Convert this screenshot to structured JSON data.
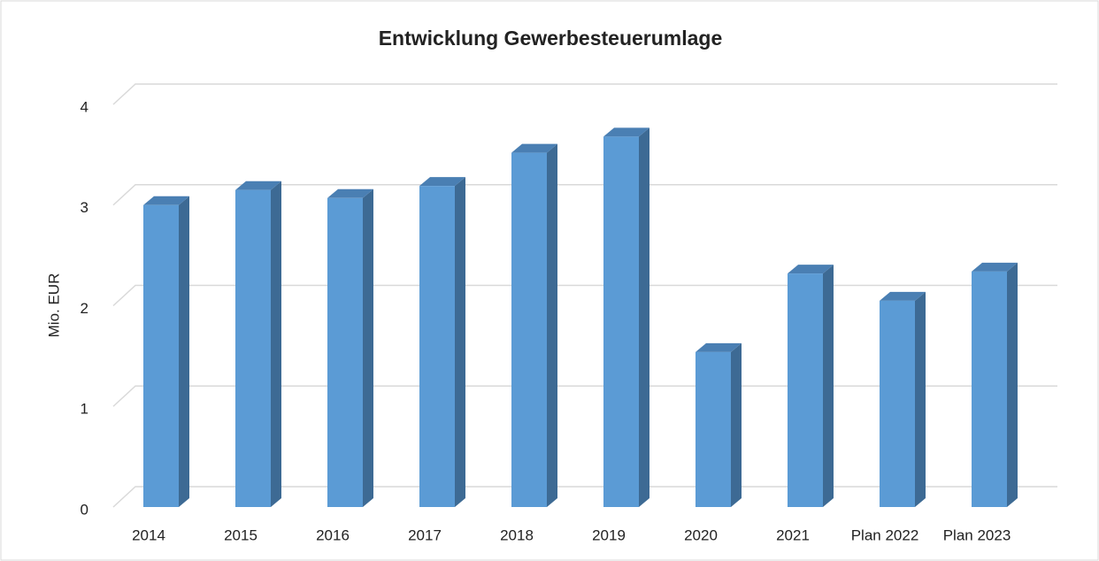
{
  "chart_data": {
    "type": "bar3d",
    "title": "Entwicklung Gewerbesteuerumlage",
    "y_label": "Mio. EUR",
    "categories": [
      "2014",
      "2015",
      "2016",
      "2017",
      "2018",
      "2019",
      "2020",
      "2021",
      "Plan 2022",
      "Plan 2023"
    ],
    "values": [
      3.0,
      3.15,
      3.07,
      3.19,
      3.52,
      3.68,
      1.54,
      2.32,
      2.05,
      2.34
    ],
    "color": "#5b9bd5",
    "ylim": [
      0,
      4
    ],
    "yticks": [
      0,
      1,
      2,
      3,
      4
    ],
    "grid": true
  }
}
